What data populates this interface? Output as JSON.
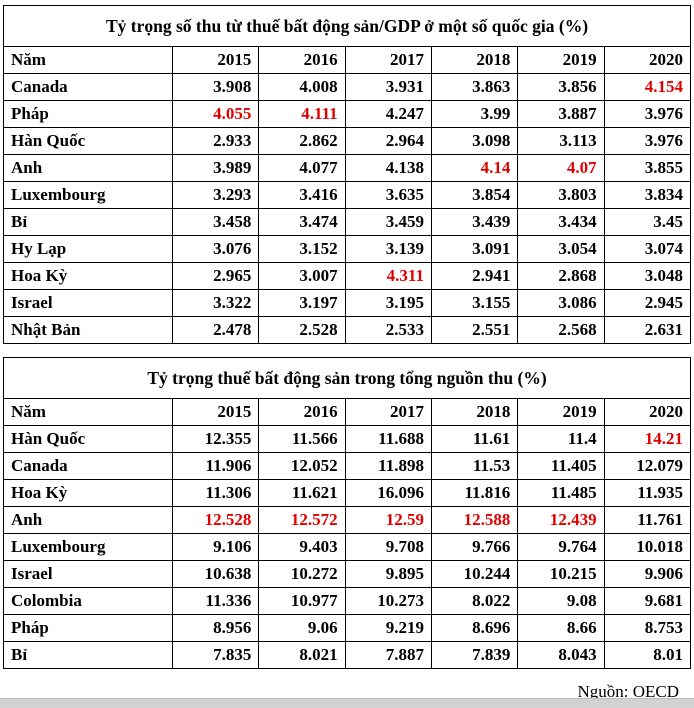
{
  "colors": {
    "highlight_red": "#e00000",
    "border": "#000000",
    "text": "#000000",
    "scrollbar_strip": "#d2d2d2"
  },
  "source_note": "Nguồn: OECD",
  "chart_data": [
    {
      "type": "table",
      "title": "Tỷ trọng số thu từ thuế bất động sản/GDP ở một số quốc gia (%)",
      "columns": [
        "Năm",
        "2015",
        "2016",
        "2017",
        "2018",
        "2019",
        "2020"
      ],
      "rows": [
        {
          "label": "Canada",
          "values": [
            "3.908",
            "4.008",
            "3.931",
            "3.863",
            "3.856",
            "4.154"
          ],
          "red_cols": [
            5
          ]
        },
        {
          "label": "Pháp",
          "values": [
            "4.055",
            "4.111",
            "4.247",
            "3.99",
            "3.887",
            "3.976"
          ],
          "red_cols": [
            0,
            1
          ]
        },
        {
          "label": "Hàn Quốc",
          "values": [
            "2.933",
            "2.862",
            "2.964",
            "3.098",
            "3.113",
            "3.976"
          ],
          "red_cols": []
        },
        {
          "label": "Anh",
          "values": [
            "3.989",
            "4.077",
            "4.138",
            "4.14",
            "4.07",
            "3.855"
          ],
          "red_cols": [
            3,
            4
          ]
        },
        {
          "label": "Luxembourg",
          "values": [
            "3.293",
            "3.416",
            "3.635",
            "3.854",
            "3.803",
            "3.834"
          ],
          "red_cols": []
        },
        {
          "label": "Bỉ",
          "values": [
            "3.458",
            "3.474",
            "3.459",
            "3.439",
            "3.434",
            "3.45"
          ],
          "red_cols": []
        },
        {
          "label": "Hy Lạp",
          "values": [
            "3.076",
            "3.152",
            "3.139",
            "3.091",
            "3.054",
            "3.074"
          ],
          "red_cols": []
        },
        {
          "label": "Hoa Kỳ",
          "values": [
            "2.965",
            "3.007",
            "4.311",
            "2.941",
            "2.868",
            "3.048"
          ],
          "red_cols": [
            2
          ]
        },
        {
          "label": "Israel",
          "values": [
            "3.322",
            "3.197",
            "3.195",
            "3.155",
            "3.086",
            "2.945"
          ],
          "red_cols": []
        },
        {
          "label": "Nhật Bản",
          "values": [
            "2.478",
            "2.528",
            "2.533",
            "2.551",
            "2.568",
            "2.631"
          ],
          "red_cols": []
        }
      ]
    },
    {
      "type": "table",
      "title": "Tỷ trọng thuế bất động sản trong tổng nguồn thu (%)",
      "columns": [
        "Năm",
        "2015",
        "2016",
        "2017",
        "2018",
        "2019",
        "2020"
      ],
      "rows": [
        {
          "label": "Hàn Quốc",
          "values": [
            "12.355",
            "11.566",
            "11.688",
            "11.61",
            "11.4",
            "14.21"
          ],
          "red_cols": [
            5
          ]
        },
        {
          "label": "Canada",
          "values": [
            "11.906",
            "12.052",
            "11.898",
            "11.53",
            "11.405",
            "12.079"
          ],
          "red_cols": []
        },
        {
          "label": "Hoa Kỳ",
          "values": [
            "11.306",
            "11.621",
            "16.096",
            "11.816",
            "11.485",
            "11.935"
          ],
          "red_cols": []
        },
        {
          "label": "Anh",
          "values": [
            "12.528",
            "12.572",
            "12.59",
            "12.588",
            "12.439",
            "11.761"
          ],
          "red_cols": [
            0,
            1,
            2,
            3,
            4
          ]
        },
        {
          "label": "Luxembourg",
          "values": [
            "9.106",
            "9.403",
            "9.708",
            "9.766",
            "9.764",
            "10.018"
          ],
          "red_cols": []
        },
        {
          "label": "Israel",
          "values": [
            "10.638",
            "10.272",
            "9.895",
            "10.244",
            "10.215",
            "9.906"
          ],
          "red_cols": []
        },
        {
          "label": "Colombia",
          "values": [
            "11.336",
            "10.977",
            "10.273",
            "8.022",
            "9.08",
            "9.681"
          ],
          "red_cols": []
        },
        {
          "label": "Pháp",
          "values": [
            "8.956",
            "9.06",
            "9.219",
            "8.696",
            "8.66",
            "8.753"
          ],
          "red_cols": []
        },
        {
          "label": "Bỉ",
          "values": [
            "7.835",
            "8.021",
            "7.887",
            "7.839",
            "8.043",
            "8.01"
          ],
          "red_cols": []
        }
      ]
    }
  ]
}
